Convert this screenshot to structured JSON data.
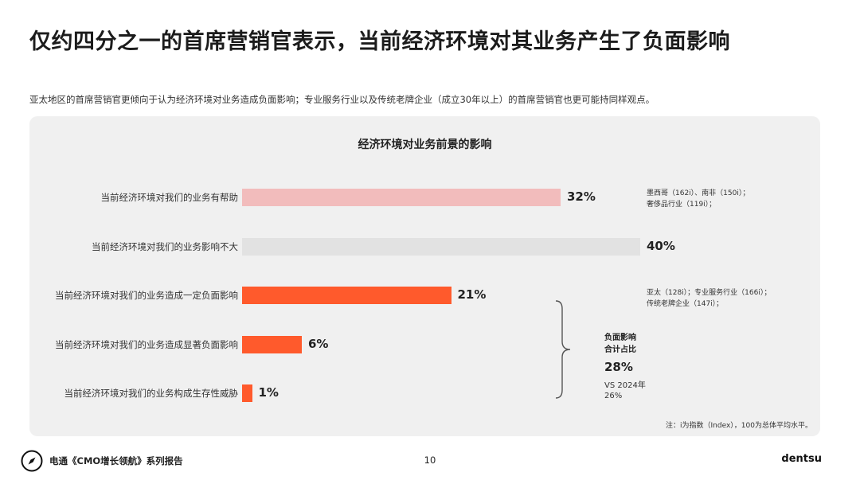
{
  "page": {
    "title": "仅约四分之一的首席营销官表示，当前经济环境对其业务产生了负面影响",
    "subtitle": "亚太地区的首席营销官更倾向于认为经济环境对业务造成负面影响；专业服务行业以及传统老牌企业（成立30年以上）的首席营销官也更可能持同样观点。"
  },
  "chart_data": {
    "type": "bar",
    "orientation": "horizontal",
    "title": "经济环境对业务前景的影响",
    "categories": [
      "当前经济环境对我们的业务有帮助",
      "当前经济环境对我们的业务影响不大",
      "当前经济环境对我们的业务造成一定负面影响",
      "当前经济环境对我们的业务造成显著负面影响",
      "当前经济环境对我们的业务构成生存性威胁"
    ],
    "values": [
      32,
      40,
      21,
      6,
      1
    ],
    "value_labels": [
      "32%",
      "40%",
      "21%",
      "6%",
      "1%"
    ],
    "colors": [
      "#f2bcbc",
      "#e2e2e2",
      "#ff5a2c",
      "#ff5a2c",
      "#ff5a2c"
    ],
    "xlim": [
      0,
      40
    ],
    "grid": false,
    "annotations": {
      "note_positive": [
        "墨西哥（162i）、南非（150i）；",
        "奢侈品行业（119i）；"
      ],
      "note_negative": [
        "亚太（128i）；专业服务行业（166i）；",
        "传统老牌企业（147i）；"
      ],
      "negative_total_label": [
        "负面影响",
        "合计占比"
      ],
      "negative_total_value": "28%",
      "negative_total_compare": [
        "VS 2024年",
        "26%"
      ],
      "footnote": "注：i为指数（Index），100为总体平均水平。"
    }
  },
  "footer": {
    "report_name": "电通《CMO增长领航》系列报告",
    "page_number": "10",
    "brand": "dentsu"
  },
  "colors": {
    "accent": "#ff5a2c",
    "positive": "#f2bcbc",
    "neutral": "#e2e2e2",
    "panel": "#f0f0f0"
  }
}
